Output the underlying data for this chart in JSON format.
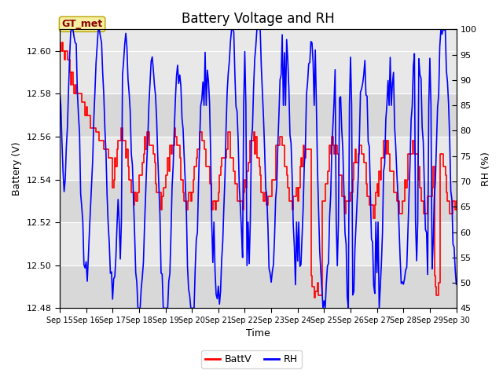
{
  "title": "Battery Voltage and RH",
  "xlabel": "Time",
  "ylabel_left": "Battery (V)",
  "ylabel_right": "RH (%)",
  "legend_label": "GT_met",
  "series_labels": [
    "BattV",
    "RH"
  ],
  "series_colors": [
    "red",
    "blue"
  ],
  "ylim_left": [
    12.48,
    12.61
  ],
  "ylim_right": [
    45,
    100
  ],
  "yticks_left": [
    12.48,
    12.5,
    12.52,
    12.54,
    12.56,
    12.58,
    12.6
  ],
  "yticks_right": [
    45,
    50,
    55,
    60,
    65,
    70,
    75,
    80,
    85,
    90,
    95,
    100
  ],
  "xtick_labels": [
    "Sep 15",
    "Sep 16",
    "Sep 17",
    "Sep 18",
    "Sep 19",
    "Sep 20",
    "Sep 21",
    "Sep 22",
    "Sep 23",
    "Sep 24",
    "Sep 25",
    "Sep 26",
    "Sep 27",
    "Sep 28",
    "Sep 29",
    "Sep 30"
  ],
  "plot_bg_color": "#e8e8e8",
  "title_fontsize": 12,
  "axis_fontsize": 9,
  "tick_fontsize": 8,
  "linewidth_batt": 1.2,
  "linewidth_rh": 1.2
}
